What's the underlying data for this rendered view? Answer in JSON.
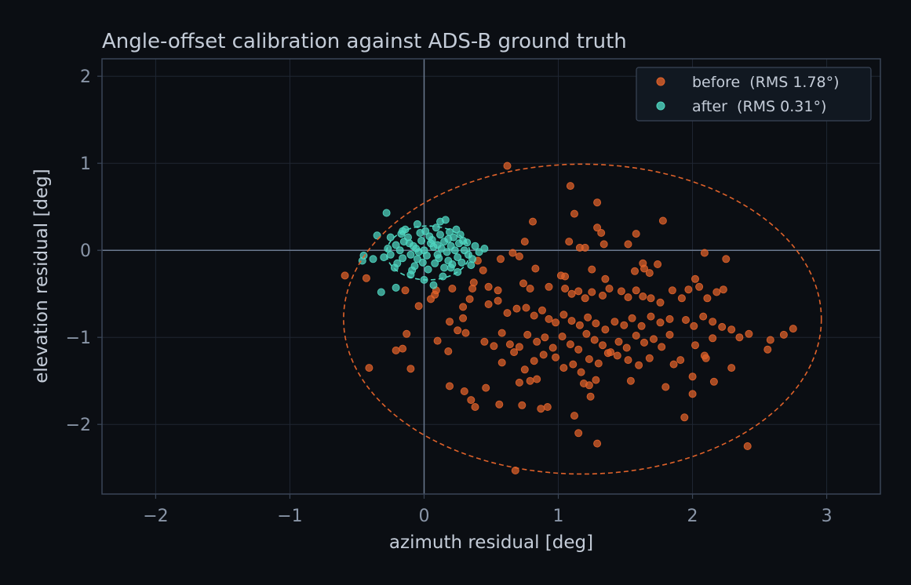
{
  "chart_data": {
    "type": "scatter",
    "title": "Angle-offset calibration against ADS-B ground truth",
    "xlabel": "azimuth residual  [deg]",
    "ylabel": "elevation residual  [deg]",
    "xlim": [
      -2.4,
      3.4
    ],
    "ylim": [
      -2.8,
      2.2
    ],
    "xticks": [
      -2,
      -1,
      0,
      1,
      2,
      3
    ],
    "xtick_labels": [
      "−2",
      "−1",
      "0",
      "1",
      "2",
      "3"
    ],
    "yticks": [
      -2,
      -1,
      0,
      1,
      2
    ],
    "ytick_labels": [
      "−2",
      "−1",
      "0",
      "1",
      "2"
    ],
    "grid": true,
    "zero_lines": true,
    "legend_position": "top-right",
    "colors": {
      "background": "#0b0e13",
      "plot_border": "#3a4557",
      "grid": "#1f2633",
      "zero_line": "#6b7a90",
      "tick_text": "#8a96a8",
      "label_text": "#c4ccd8",
      "before": "#e0622a",
      "after": "#4fd6c0"
    },
    "series": [
      {
        "name": "before  (RMS 1.78°)",
        "color": "#e0622a",
        "points": [
          [
            0.62,
            0.97
          ],
          [
            1.09,
            0.74
          ],
          [
            1.29,
            0.55
          ],
          [
            1.12,
            0.42
          ],
          [
            0.81,
            0.33
          ],
          [
            1.78,
            0.34
          ],
          [
            1.29,
            0.26
          ],
          [
            1.32,
            0.2
          ],
          [
            1.58,
            0.19
          ],
          [
            0.75,
            0.1
          ],
          [
            1.08,
            0.1
          ],
          [
            1.16,
            0.03
          ],
          [
            1.2,
            0.03
          ],
          [
            1.34,
            0.07
          ],
          [
            1.52,
            0.07
          ],
          [
            2.09,
            -0.03
          ],
          [
            0.66,
            -0.03
          ],
          [
            0.71,
            -0.07
          ],
          [
            0.57,
            -0.1
          ],
          [
            2.25,
            -0.1
          ],
          [
            0.4,
            -0.12
          ],
          [
            0.83,
            -0.21
          ],
          [
            1.02,
            -0.29
          ],
          [
            1.05,
            -0.3
          ],
          [
            1.25,
            -0.22
          ],
          [
            1.35,
            -0.33
          ],
          [
            1.57,
            -0.24
          ],
          [
            1.64,
            -0.21
          ],
          [
            1.68,
            -0.26
          ],
          [
            1.74,
            -0.16
          ],
          [
            1.63,
            -0.15
          ],
          [
            2.02,
            -0.33
          ],
          [
            0.44,
            -0.23
          ],
          [
            0.37,
            -0.37
          ],
          [
            0.48,
            -0.42
          ],
          [
            0.55,
            -0.46
          ],
          [
            0.34,
            -0.56
          ],
          [
            0.29,
            -0.65
          ],
          [
            0.29,
            -0.78
          ],
          [
            0.36,
            -0.44
          ],
          [
            0.21,
            -0.44
          ],
          [
            0.09,
            -0.46
          ],
          [
            0.08,
            -0.51
          ],
          [
            0.05,
            -0.56
          ],
          [
            -0.04,
            -0.64
          ],
          [
            -0.59,
            -0.29
          ],
          [
            -0.43,
            -0.32
          ],
          [
            -0.14,
            -0.46
          ],
          [
            0.74,
            -0.38
          ],
          [
            0.79,
            -0.44
          ],
          [
            0.93,
            -0.42
          ],
          [
            1.05,
            -0.44
          ],
          [
            1.1,
            -0.5
          ],
          [
            1.15,
            -0.47
          ],
          [
            1.2,
            -0.55
          ],
          [
            1.25,
            -0.48
          ],
          [
            1.33,
            -0.52
          ],
          [
            1.38,
            -0.44
          ],
          [
            1.47,
            -0.47
          ],
          [
            1.52,
            -0.54
          ],
          [
            1.58,
            -0.46
          ],
          [
            1.63,
            -0.53
          ],
          [
            1.69,
            -0.55
          ],
          [
            1.76,
            -0.6
          ],
          [
            1.85,
            -0.46
          ],
          [
            1.92,
            -0.55
          ],
          [
            1.97,
            -0.45
          ],
          [
            2.05,
            -0.42
          ],
          [
            2.11,
            -0.55
          ],
          [
            2.18,
            -0.48
          ],
          [
            2.23,
            -0.45
          ],
          [
            0.48,
            -0.62
          ],
          [
            0.55,
            -0.58
          ],
          [
            0.62,
            -0.72
          ],
          [
            0.69,
            -0.67
          ],
          [
            0.76,
            -0.66
          ],
          [
            0.82,
            -0.75
          ],
          [
            0.88,
            -0.69
          ],
          [
            0.93,
            -0.79
          ],
          [
            0.98,
            -0.83
          ],
          [
            1.04,
            -0.74
          ],
          [
            1.1,
            -0.81
          ],
          [
            1.16,
            -0.86
          ],
          [
            1.22,
            -0.77
          ],
          [
            1.28,
            -0.84
          ],
          [
            1.35,
            -0.91
          ],
          [
            1.42,
            -0.82
          ],
          [
            1.49,
            -0.86
          ],
          [
            1.55,
            -0.78
          ],
          [
            1.62,
            -0.87
          ],
          [
            1.69,
            -0.76
          ],
          [
            1.76,
            -0.83
          ],
          [
            1.83,
            -0.79
          ],
          [
            1.95,
            -0.8
          ],
          [
            2.01,
            -0.87
          ],
          [
            2.08,
            -0.76
          ],
          [
            2.15,
            -0.82
          ],
          [
            2.22,
            -0.88
          ],
          [
            2.29,
            -0.91
          ],
          [
            2.35,
            -1.0
          ],
          [
            0.19,
            -0.82
          ],
          [
            0.25,
            -0.92
          ],
          [
            0.31,
            -0.95
          ],
          [
            0.45,
            -1.05
          ],
          [
            0.52,
            -1.1
          ],
          [
            0.58,
            -0.95
          ],
          [
            0.64,
            -1.08
          ],
          [
            0.71,
            -1.11
          ],
          [
            0.77,
            -0.97
          ],
          [
            0.84,
            -1.05
          ],
          [
            0.9,
            -1.0
          ],
          [
            0.96,
            -1.12
          ],
          [
            1.03,
            -0.99
          ],
          [
            1.09,
            -1.08
          ],
          [
            1.15,
            -1.14
          ],
          [
            1.21,
            -0.96
          ],
          [
            1.27,
            -1.03
          ],
          [
            1.33,
            -1.09
          ],
          [
            1.39,
            -1.17
          ],
          [
            1.45,
            -1.05
          ],
          [
            1.51,
            -1.12
          ],
          [
            1.58,
            -0.98
          ],
          [
            1.64,
            -1.06
          ],
          [
            1.71,
            -1.02
          ],
          [
            1.77,
            -1.11
          ],
          [
            1.83,
            -0.97
          ],
          [
            2.02,
            -1.09
          ],
          [
            2.09,
            -1.21
          ],
          [
            2.15,
            -1.01
          ],
          [
            2.42,
            -0.96
          ],
          [
            2.58,
            -1.03
          ],
          [
            2.68,
            -0.97
          ],
          [
            2.75,
            -0.9
          ],
          [
            2.56,
            -1.14
          ],
          [
            0.58,
            -1.29
          ],
          [
            0.67,
            -1.17
          ],
          [
            0.75,
            -1.37
          ],
          [
            0.82,
            -1.27
          ],
          [
            0.89,
            -1.2
          ],
          [
            0.98,
            -1.23
          ],
          [
            1.04,
            -1.35
          ],
          [
            1.11,
            -1.31
          ],
          [
            1.17,
            -1.4
          ],
          [
            1.23,
            -1.25
          ],
          [
            1.3,
            -1.3
          ],
          [
            1.37,
            -1.18
          ],
          [
            1.44,
            -1.21
          ],
          [
            1.52,
            -1.26
          ],
          [
            1.6,
            -1.32
          ],
          [
            1.68,
            -1.24
          ],
          [
            1.86,
            -1.31
          ],
          [
            1.91,
            -1.26
          ],
          [
            2.1,
            -1.24
          ],
          [
            2.29,
            -1.35
          ],
          [
            0.18,
            -1.16
          ],
          [
            0.1,
            -1.04
          ],
          [
            -0.21,
            -1.15
          ],
          [
            -0.16,
            -1.13
          ],
          [
            -0.13,
            -0.96
          ],
          [
            -0.41,
            -1.35
          ],
          [
            -0.1,
            -1.36
          ],
          [
            0.19,
            -1.56
          ],
          [
            0.3,
            -1.62
          ],
          [
            0.35,
            -1.72
          ],
          [
            0.38,
            -1.8
          ],
          [
            0.46,
            -1.58
          ],
          [
            0.56,
            -1.77
          ],
          [
            0.71,
            -1.52
          ],
          [
            0.79,
            -1.5
          ],
          [
            0.84,
            -1.48
          ],
          [
            0.73,
            -1.78
          ],
          [
            0.87,
            -1.82
          ],
          [
            0.92,
            -1.8
          ],
          [
            1.12,
            -1.9
          ],
          [
            1.19,
            -1.53
          ],
          [
            1.23,
            -1.55
          ],
          [
            1.28,
            -1.49
          ],
          [
            1.24,
            -1.68
          ],
          [
            1.54,
            -1.5
          ],
          [
            1.8,
            -1.57
          ],
          [
            1.94,
            -1.92
          ],
          [
            2.0,
            -1.65
          ],
          [
            2.0,
            -1.45
          ],
          [
            2.16,
            -1.51
          ],
          [
            1.15,
            -2.1
          ],
          [
            1.29,
            -2.22
          ],
          [
            2.41,
            -2.25
          ],
          [
            0.68,
            -2.53
          ]
        ]
      },
      {
        "name": "after  (RMS 0.31°)",
        "color": "#4fd6c0",
        "points": [
          [
            -0.28,
            0.43
          ],
          [
            -0.16,
            0.22
          ],
          [
            -0.05,
            0.3
          ],
          [
            0.12,
            0.33
          ],
          [
            0.16,
            0.35
          ],
          [
            0.24,
            0.24
          ],
          [
            0.45,
            0.02
          ],
          [
            -0.35,
            0.17
          ],
          [
            -0.45,
            -0.06
          ],
          [
            -0.46,
            -0.12
          ],
          [
            -0.32,
            -0.48
          ],
          [
            -0.21,
            -0.43
          ],
          [
            0.07,
            -0.4
          ],
          [
            0.25,
            -0.25
          ],
          [
            0.35,
            -0.17
          ],
          [
            0.29,
            0.11
          ],
          [
            0.32,
            0.09
          ],
          [
            -0.25,
            0.15
          ],
          [
            -0.22,
            -0.2
          ],
          [
            -0.1,
            -0.28
          ],
          [
            0.0,
            -0.34
          ],
          [
            0.14,
            -0.3
          ],
          [
            0.2,
            -0.2
          ],
          [
            -0.15,
            0.1
          ],
          [
            -0.08,
            0.05
          ],
          [
            0.0,
            0.0
          ],
          [
            0.05,
            0.08
          ],
          [
            0.1,
            -0.05
          ],
          [
            -0.05,
            -0.1
          ],
          [
            0.15,
            0.1
          ],
          [
            0.2,
            0.05
          ],
          [
            -0.1,
            -0.05
          ],
          [
            0.08,
            -0.15
          ],
          [
            -0.18,
            0.0
          ],
          [
            0.25,
            -0.08
          ],
          [
            0.12,
            0.18
          ],
          [
            -0.03,
            0.2
          ],
          [
            0.18,
            -0.12
          ],
          [
            -0.12,
            0.15
          ],
          [
            0.3,
            0.0
          ],
          [
            -0.25,
            -0.05
          ],
          [
            0.03,
            -0.22
          ],
          [
            0.22,
            0.15
          ],
          [
            -0.2,
            -0.15
          ],
          [
            0.06,
            0.12
          ],
          [
            -0.07,
            -0.18
          ],
          [
            0.17,
            -0.02
          ],
          [
            0.28,
            -0.14
          ],
          [
            -0.14,
            0.24
          ],
          [
            0.09,
            0.26
          ],
          [
            0.02,
            -0.06
          ],
          [
            -0.02,
            0.11
          ],
          [
            0.13,
            0.02
          ],
          [
            -0.11,
            0.08
          ],
          [
            0.21,
            -0.16
          ],
          [
            0.04,
            0.16
          ],
          [
            -0.16,
            -0.09
          ],
          [
            0.26,
            0.08
          ],
          [
            -0.06,
            0.02
          ],
          [
            0.11,
            -0.09
          ],
          [
            0.19,
            0.21
          ],
          [
            -0.21,
            0.06
          ],
          [
            0.33,
            -0.05
          ],
          [
            -0.3,
            -0.08
          ],
          [
            0.38,
            0.05
          ],
          [
            0.41,
            -0.02
          ],
          [
            -0.38,
            -0.1
          ],
          [
            0.07,
            0.04
          ],
          [
            -0.04,
            -0.02
          ],
          [
            0.15,
            -0.2
          ],
          [
            -0.09,
            -0.23
          ],
          [
            0.23,
            0.0
          ],
          [
            0.01,
            0.22
          ],
          [
            -0.17,
            0.19
          ],
          [
            0.36,
            -0.1
          ],
          [
            -0.27,
            0.02
          ],
          [
            0.27,
            0.18
          ],
          [
            0.1,
            0.06
          ],
          [
            -0.01,
            -0.14
          ],
          [
            0.18,
            0.13
          ]
        ]
      }
    ],
    "ellipses": [
      {
        "series": "before",
        "center": [
          1.18,
          -0.79
        ],
        "radii": [
          1.78,
          1.78
        ],
        "style": "dashed"
      },
      {
        "series": "after",
        "center": [
          0.03,
          -0.03
        ],
        "radii": [
          0.31,
          0.31
        ],
        "style": "dashed"
      }
    ]
  }
}
